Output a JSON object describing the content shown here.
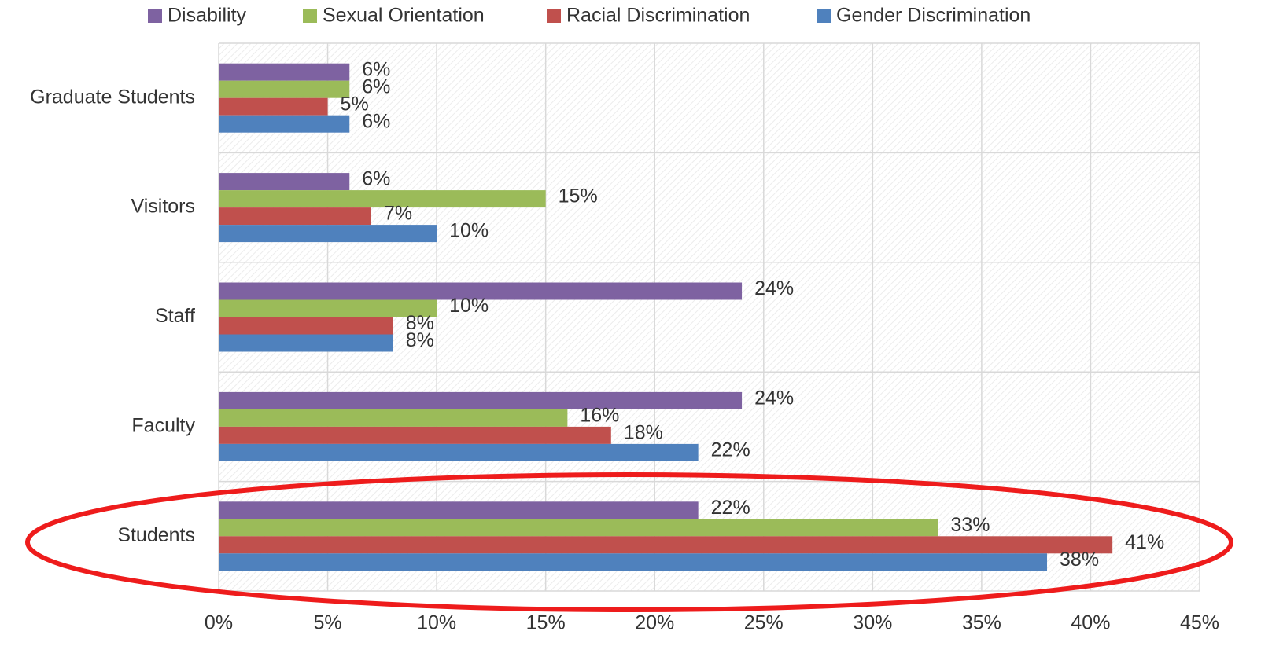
{
  "chart_data": {
    "type": "hbar",
    "categories": [
      "Graduate Students",
      "Visitors",
      "Staff",
      "Faculty",
      "Students"
    ],
    "series": [
      {
        "name": "Disability",
        "color": "#7e62a1",
        "values": [
          6,
          6,
          24,
          24,
          22
        ],
        "value_labels": [
          "6%",
          "6%",
          "24%",
          "24%",
          "22%"
        ]
      },
      {
        "name": "Sexual Orientation",
        "color": "#9bbb59",
        "values": [
          6,
          15,
          10,
          16,
          33
        ],
        "value_labels": [
          "6%",
          "15%",
          "10%",
          "16%",
          "33%"
        ]
      },
      {
        "name": "Racial Discrimination",
        "color": "#c0504d",
        "values": [
          5,
          7,
          8,
          18,
          41
        ],
        "value_labels": [
          "5%",
          "7%",
          "8%",
          "18%",
          "41%"
        ]
      },
      {
        "name": "Gender Discrimination",
        "color": "#4f81bd",
        "values": [
          6,
          10,
          8,
          22,
          38
        ],
        "value_labels": [
          "6%",
          "10%",
          "8%",
          "22%",
          "38%"
        ]
      }
    ],
    "xlim": [
      0,
      45
    ],
    "xticks": [
      {
        "value": 0,
        "label": "0%"
      },
      {
        "value": 5,
        "label": "5%"
      },
      {
        "value": 10,
        "label": "10%"
      },
      {
        "value": 15,
        "label": "15%"
      },
      {
        "value": 20,
        "label": "20%"
      },
      {
        "value": 25,
        "label": "25%"
      },
      {
        "value": 30,
        "label": "30%"
      },
      {
        "value": 35,
        "label": "35%"
      },
      {
        "value": 40,
        "label": "40%"
      },
      {
        "value": 45,
        "label": "45%"
      }
    ],
    "grid": true,
    "legend": "top"
  }
}
